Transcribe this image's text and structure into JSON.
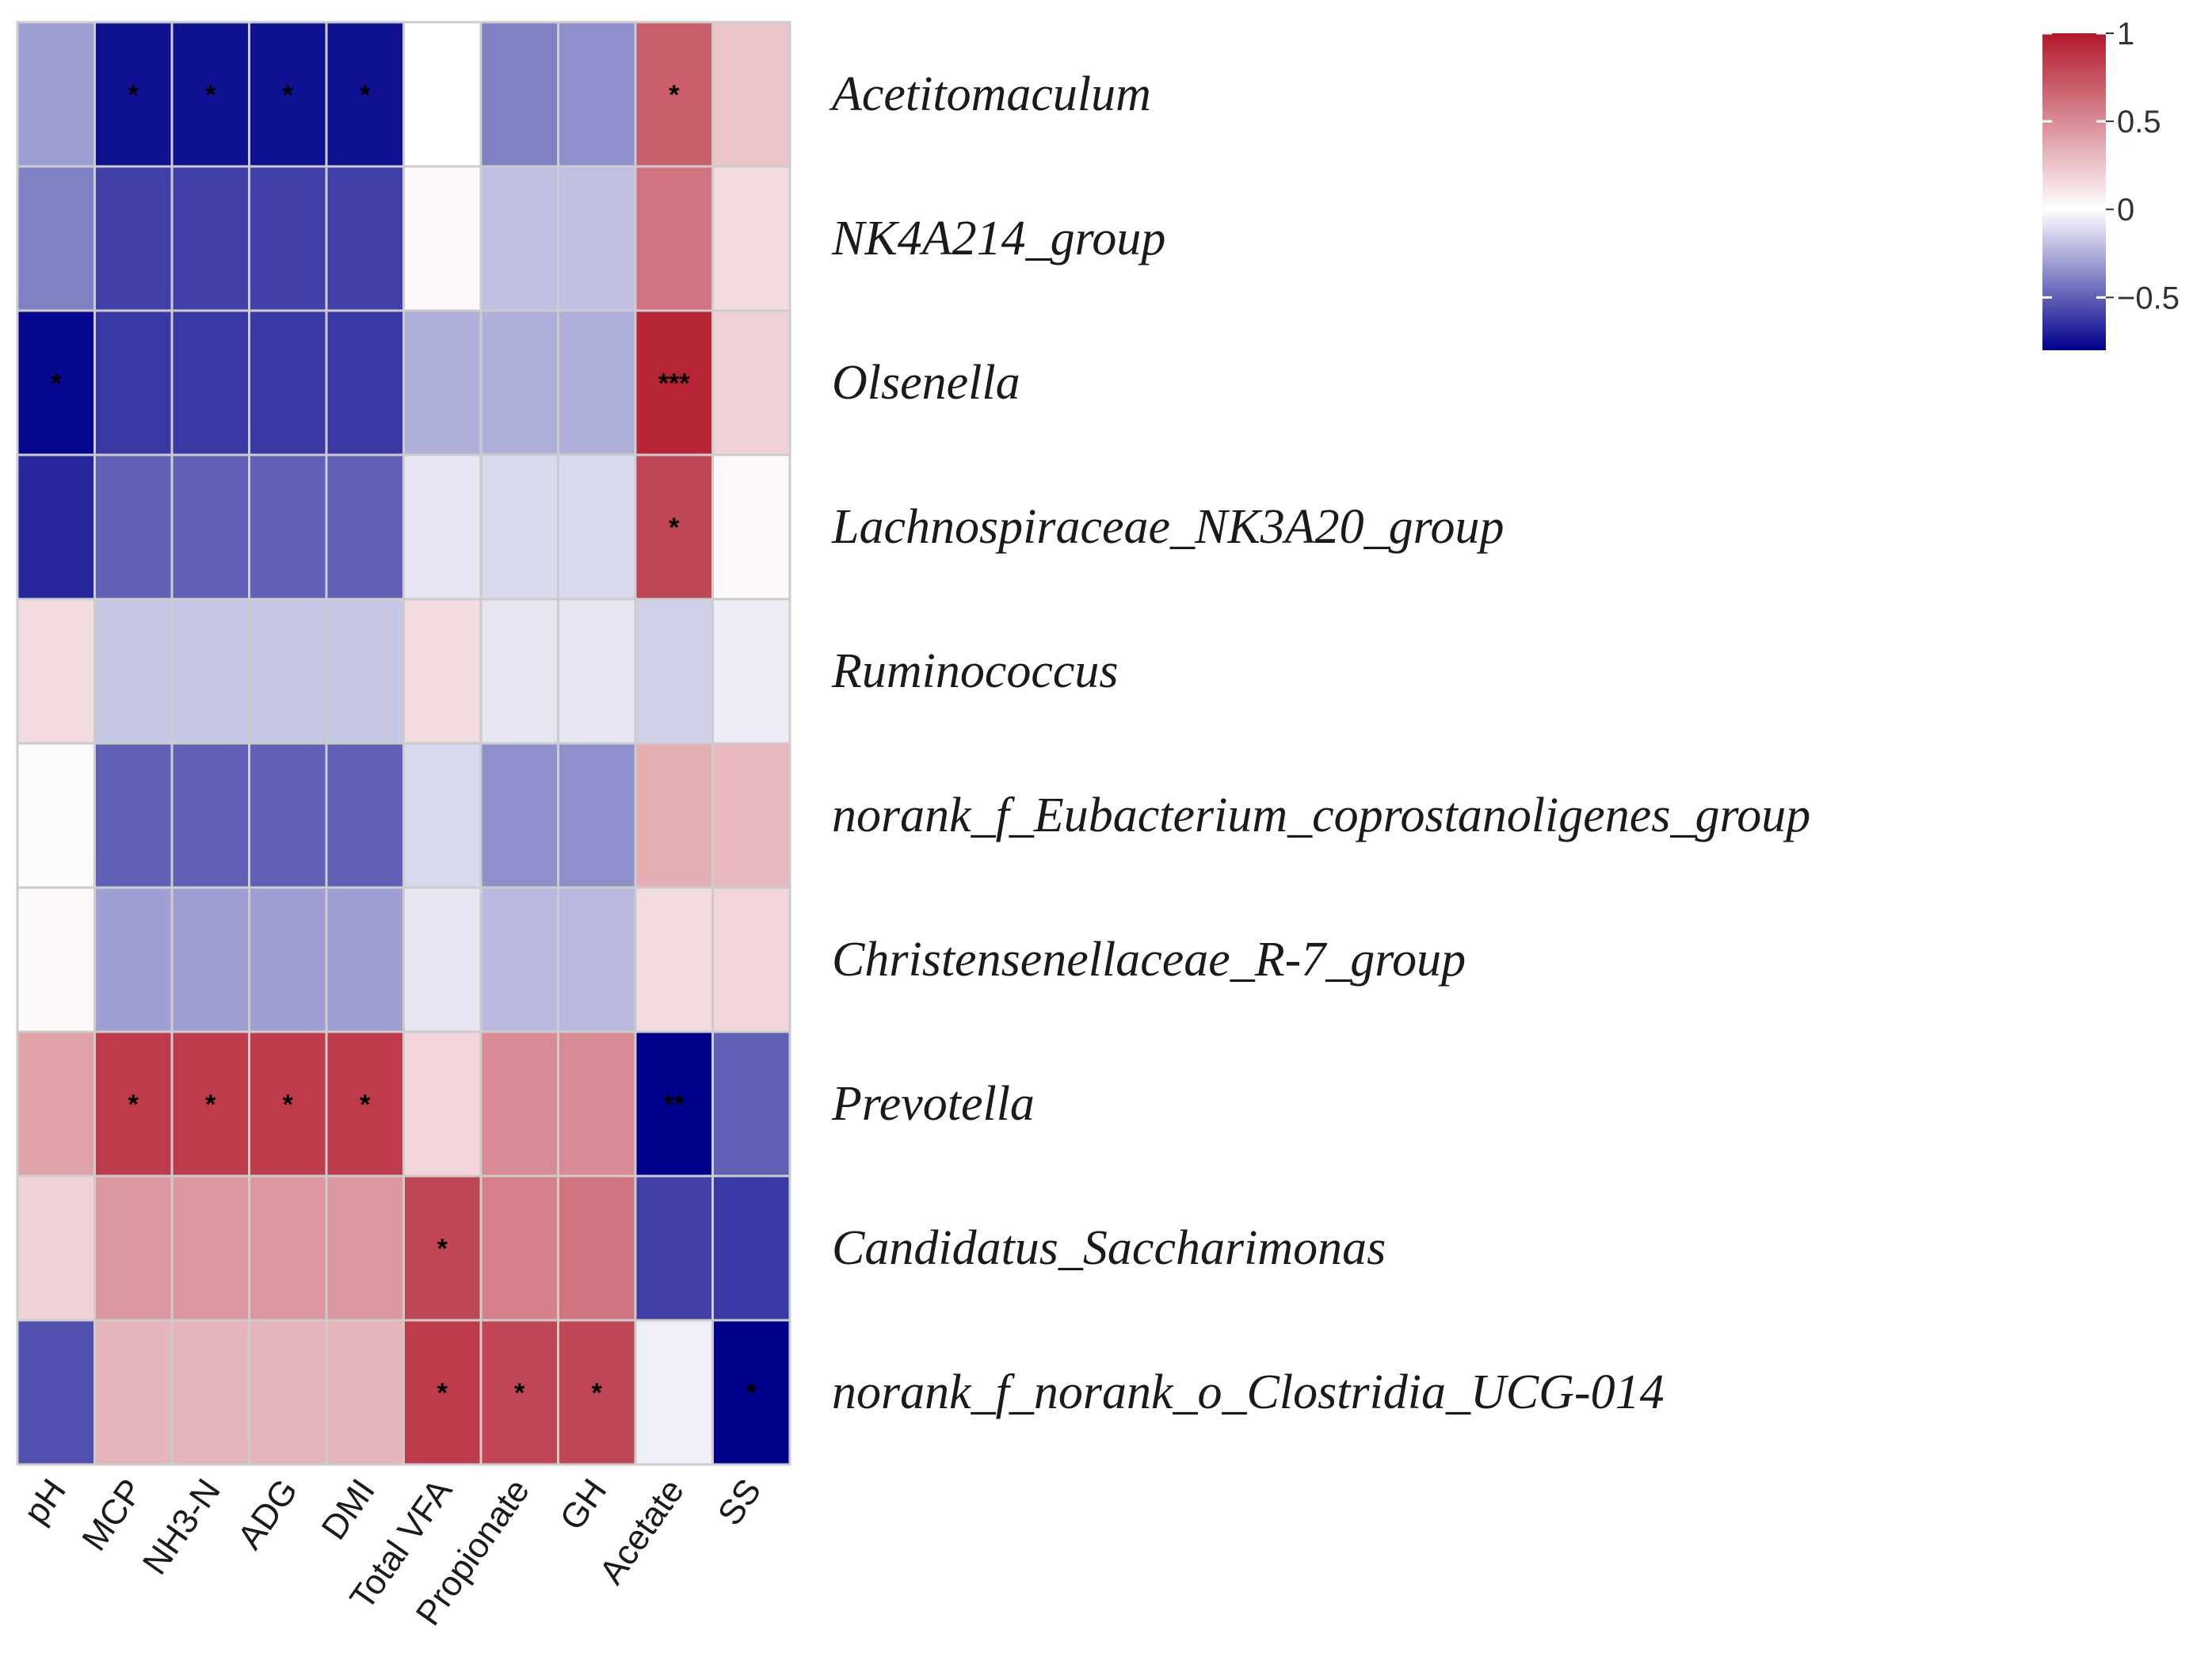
{
  "chart_data": {
    "type": "heatmap",
    "title": "",
    "rows": [
      "Acetitomaculum",
      "NK4A214_group",
      "Olsenella",
      "Lachnospiraceae_NK3A20_group",
      "Ruminococcus",
      "norank_f_Eubacterium_coprostanoligenes_group",
      "Christensenellaceae_R-7_group",
      "Prevotella",
      "Candidatus_Saccharimonas",
      "norank_f_norank_o_Clostridia_UCG-014"
    ],
    "columns": [
      "pH",
      "MCP",
      "NH3-N",
      "ADG",
      "DMI",
      "Total VFA",
      "Propionate",
      "GH",
      "Acetate",
      "SS"
    ],
    "values": [
      [
        -0.3,
        -0.75,
        -0.75,
        -0.75,
        -0.75,
        0.0,
        -0.4,
        -0.35,
        0.7,
        0.25
      ],
      [
        -0.4,
        -0.6,
        -0.6,
        -0.6,
        -0.6,
        0.03,
        -0.2,
        -0.2,
        0.6,
        0.15
      ],
      [
        -0.78,
        -0.62,
        -0.62,
        -0.62,
        -0.62,
        -0.25,
        -0.25,
        -0.25,
        0.95,
        0.2
      ],
      [
        -0.68,
        -0.5,
        -0.5,
        -0.5,
        -0.5,
        -0.08,
        -0.12,
        -0.12,
        0.8,
        0.03
      ],
      [
        0.15,
        -0.18,
        -0.18,
        -0.18,
        -0.18,
        0.15,
        -0.08,
        -0.08,
        -0.15,
        -0.06
      ],
      [
        0.02,
        -0.5,
        -0.5,
        -0.5,
        -0.5,
        -0.12,
        -0.35,
        -0.35,
        0.35,
        0.3
      ],
      [
        0.03,
        -0.3,
        -0.3,
        -0.3,
        -0.3,
        -0.08,
        -0.22,
        -0.22,
        0.15,
        0.18
      ],
      [
        0.4,
        0.85,
        0.85,
        0.85,
        0.85,
        0.18,
        0.5,
        0.5,
        -0.9,
        -0.5
      ],
      [
        0.2,
        0.45,
        0.45,
        0.45,
        0.45,
        0.8,
        0.55,
        0.6,
        -0.6,
        -0.62
      ],
      [
        -0.55,
        0.32,
        0.32,
        0.32,
        0.32,
        0.85,
        0.8,
        0.8,
        -0.05,
        -0.8
      ]
    ],
    "significance": [
      [
        "",
        "*",
        "*",
        "*",
        "*",
        "",
        "",
        "",
        "*",
        ""
      ],
      [
        "",
        "",
        "",
        "",
        "",
        "",
        "",
        "",
        "",
        ""
      ],
      [
        "*",
        "",
        "",
        "",
        "",
        "",
        "",
        "",
        "***",
        ""
      ],
      [
        "",
        "",
        "",
        "",
        "",
        "",
        "",
        "",
        "*",
        ""
      ],
      [
        "",
        "",
        "",
        "",
        "",
        "",
        "",
        "",
        "",
        ""
      ],
      [
        "",
        "",
        "",
        "",
        "",
        "",
        "",
        "",
        "",
        ""
      ],
      [
        "",
        "",
        "",
        "",
        "",
        "",
        "",
        "",
        "",
        ""
      ],
      [
        "",
        "*",
        "*",
        "*",
        "*",
        "",
        "",
        "",
        "**",
        ""
      ],
      [
        "",
        "",
        "",
        "",
        "",
        "*",
        "",
        "",
        "",
        ""
      ],
      [
        "",
        "",
        "",
        "",
        "",
        "*",
        "*",
        "*",
        "",
        "*"
      ]
    ],
    "color_scale": {
      "min": -0.8,
      "max": 1,
      "low_color": "#00008b",
      "mid_color": "#ffffff",
      "high_color": "#b2182b",
      "ticks": [
        1,
        0.5,
        0,
        -0.5
      ],
      "tick_labels": [
        "1",
        "0.5",
        "0",
        "−0.5"
      ]
    },
    "legend_position": "top-right",
    "grid_color": "#cccccc"
  }
}
